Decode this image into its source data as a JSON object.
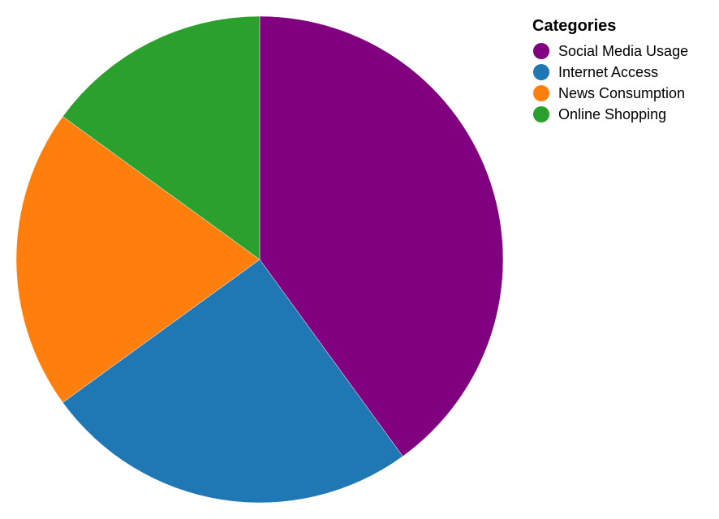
{
  "chart_data": {
    "type": "pie",
    "categories": [
      "Social Media Usage",
      "Internet Access",
      "News Consumption",
      "Online Shopping"
    ],
    "values": [
      40,
      25,
      20,
      15
    ],
    "colors": [
      "#800080",
      "#1f77b4",
      "#ff7f0e",
      "#2ca02c"
    ],
    "start_angle_deg": 0,
    "direction": "clockwise",
    "legend": {
      "title": "Categories",
      "placement": "top-right"
    }
  }
}
